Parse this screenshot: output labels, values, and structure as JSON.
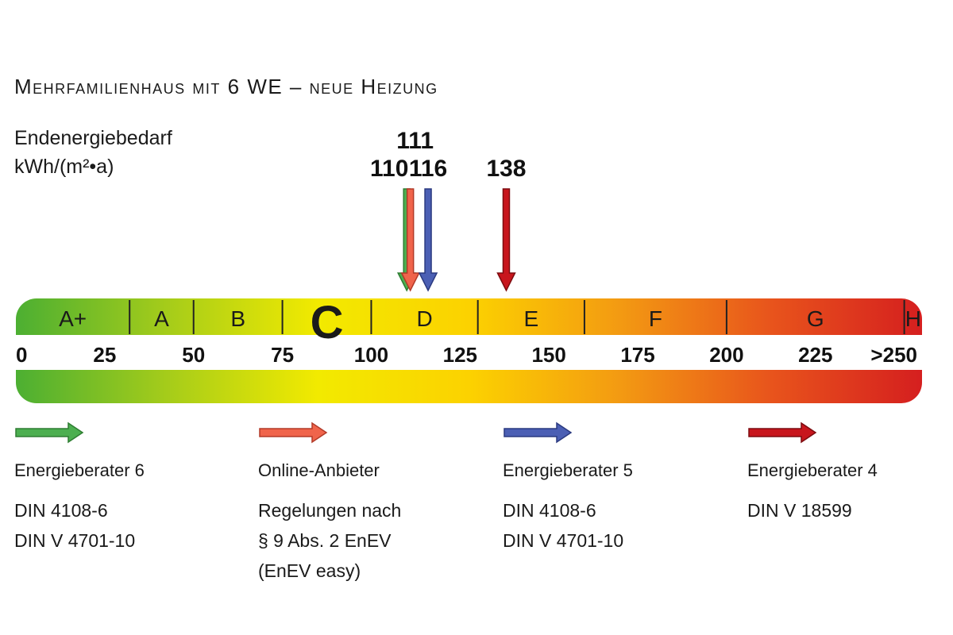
{
  "title": "Mehrfamilienhaus mit 6 WE – neue Heizung",
  "unit_label": {
    "line1": "Endenergiebedarf",
    "line2": "kWh/(m²•a)"
  },
  "chart_data": {
    "type": "energy-scale",
    "x_range": [
      0,
      255
    ],
    "tick_labels": [
      "0",
      "25",
      "50",
      "75",
      "100",
      "125",
      "150",
      "175",
      "200",
      "225",
      ">250"
    ],
    "tick_values": [
      0,
      25,
      50,
      75,
      100,
      125,
      150,
      175,
      200,
      225,
      250
    ],
    "classes": [
      {
        "label": "A+",
        "from": 0,
        "to": 32
      },
      {
        "label": "A",
        "from": 32,
        "to": 50
      },
      {
        "label": "B",
        "from": 50,
        "to": 75
      },
      {
        "label": "C",
        "from": 75,
        "to": 100,
        "emphasized": true
      },
      {
        "label": "D",
        "from": 100,
        "to": 130
      },
      {
        "label": "E",
        "from": 130,
        "to": 160
      },
      {
        "label": "F",
        "from": 160,
        "to": 200
      },
      {
        "label": "G",
        "from": 200,
        "to": 250
      },
      {
        "label": "H",
        "from": 250,
        "to": 255
      }
    ],
    "gradient_colors": [
      "#4caf32",
      "#a5cc1a",
      "#f2ea00",
      "#fcd200",
      "#f39a12",
      "#e8541c",
      "#d51f1f"
    ],
    "markers": [
      {
        "value": 110,
        "label": "110",
        "color": "#4caf50",
        "series": "Energieberater 6"
      },
      {
        "value": 111,
        "label": "111",
        "color": "#f0644b",
        "series": "Online-Anbieter"
      },
      {
        "value": 116,
        "label": "116",
        "color": "#4b5fb4",
        "series": "Energieberater 5"
      },
      {
        "value": 138,
        "label": "138",
        "color": "#c8161d",
        "series": "Energieberater 4"
      }
    ]
  },
  "legend": [
    {
      "name": "Energieberater 6",
      "color": "#4caf50",
      "notes": [
        "DIN 4108-6",
        "DIN V 4701-10"
      ]
    },
    {
      "name": "Online-Anbieter",
      "color": "#f0644b",
      "notes": [
        "Regelungen nach",
        "§ 9 Abs. 2 EnEV",
        "(EnEV easy)"
      ]
    },
    {
      "name": "Energieberater 5",
      "color": "#4b5fb4",
      "notes": [
        "DIN 4108-6",
        "DIN V 4701-10"
      ]
    },
    {
      "name": "Energieberater 4",
      "color": "#c8161d",
      "notes": [
        "DIN V 18599"
      ]
    }
  ]
}
